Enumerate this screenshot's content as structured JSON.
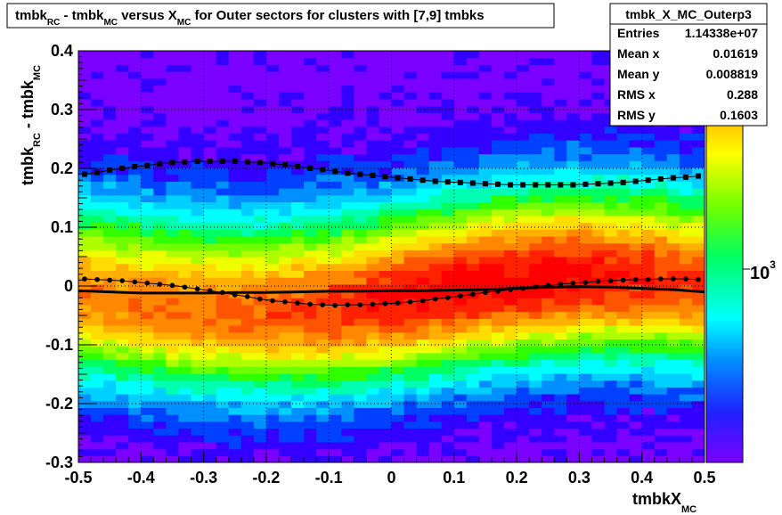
{
  "chart_data": {
    "type": "heatmap",
    "title": {
      "parts": [
        {
          "text": "tmbk",
          "sub": false
        },
        {
          "text": "RC",
          "sub": true
        },
        {
          "text": " - tmbk",
          "sub": false
        },
        {
          "text": "MC",
          "sub": true
        },
        {
          "text": " versus X",
          "sub": false
        },
        {
          "text": "MC",
          "sub": true
        },
        {
          "text": " for Outer sectors for clusters with [7,9] tmbks",
          "sub": false
        }
      ]
    },
    "xlabel": {
      "main": "tmbkX",
      "sub": "MC"
    },
    "ylabel": {
      "part1": "tmbk",
      "sub1": "RC",
      "part2": " - tmbk",
      "sub2": "MC"
    },
    "xlim": [
      -0.5,
      0.5
    ],
    "ylim": [
      -0.3,
      0.4
    ],
    "xticks": [
      "-0.5",
      "-0.4",
      "-0.3",
      "-0.2",
      "-0.1",
      "0",
      "0.1",
      "0.2",
      "0.3",
      "0.4",
      "0.5"
    ],
    "yticks": [
      "-0.3",
      "-0.2",
      "-0.1",
      "0",
      "0.1",
      "0.2",
      "0.3",
      "0.4"
    ],
    "grid": true,
    "colorbar": {
      "label": "10",
      "exponent": "3",
      "scale": "log"
    },
    "stats": {
      "name": "tmbk_X_MC_Outerp3",
      "rows": [
        {
          "label": "Entries",
          "value": "1.14338e+07"
        },
        {
          "label": "Mean x",
          "value": "0.01619"
        },
        {
          "label": "Mean y",
          "value": "0.008819"
        },
        {
          "label": "RMS x",
          "value": "0.288"
        },
        {
          "label": "RMS y",
          "value": "0.1603"
        }
      ]
    },
    "series": [
      {
        "marker": "square",
        "x": [
          -0.49,
          -0.47,
          -0.45,
          -0.43,
          -0.41,
          -0.39,
          -0.37,
          -0.35,
          -0.33,
          -0.31,
          -0.29,
          -0.27,
          -0.25,
          -0.23,
          -0.21,
          -0.19,
          -0.17,
          -0.15,
          -0.13,
          -0.11,
          -0.09,
          -0.07,
          -0.05,
          -0.03,
          -0.01,
          0.01,
          0.03,
          0.05,
          0.07,
          0.09,
          0.11,
          0.13,
          0.15,
          0.17,
          0.19,
          0.21,
          0.23,
          0.25,
          0.27,
          0.29,
          0.31,
          0.33,
          0.35,
          0.37,
          0.39,
          0.41,
          0.43,
          0.45,
          0.47,
          0.49
        ],
        "y": [
          0.19,
          0.193,
          0.197,
          0.2,
          0.203,
          0.205,
          0.208,
          0.21,
          0.211,
          0.212,
          0.212,
          0.212,
          0.212,
          0.211,
          0.21,
          0.208,
          0.206,
          0.203,
          0.2,
          0.198,
          0.195,
          0.192,
          0.19,
          0.188,
          0.186,
          0.184,
          0.182,
          0.18,
          0.178,
          0.177,
          0.176,
          0.175,
          0.174,
          0.173,
          0.172,
          0.172,
          0.172,
          0.172,
          0.172,
          0.172,
          0.173,
          0.174,
          0.175,
          0.176,
          0.178,
          0.18,
          0.182,
          0.184,
          0.185,
          0.187
        ]
      },
      {
        "marker": "circle",
        "x": [
          -0.49,
          -0.47,
          -0.45,
          -0.43,
          -0.41,
          -0.39,
          -0.37,
          -0.35,
          -0.33,
          -0.31,
          -0.29,
          -0.27,
          -0.25,
          -0.23,
          -0.21,
          -0.19,
          -0.17,
          -0.15,
          -0.13,
          -0.11,
          -0.09,
          -0.07,
          -0.05,
          -0.03,
          -0.01,
          0.01,
          0.03,
          0.05,
          0.07,
          0.09,
          0.11,
          0.13,
          0.15,
          0.17,
          0.19,
          0.21,
          0.23,
          0.25,
          0.27,
          0.29,
          0.31,
          0.33,
          0.35,
          0.37,
          0.39,
          0.41,
          0.43,
          0.45,
          0.47,
          0.49
        ],
        "y": [
          0.012,
          0.011,
          0.01,
          0.009,
          0.007,
          0.005,
          0.003,
          0.001,
          -0.002,
          -0.005,
          -0.008,
          -0.011,
          -0.015,
          -0.018,
          -0.022,
          -0.025,
          -0.027,
          -0.029,
          -0.031,
          -0.032,
          -0.033,
          -0.032,
          -0.032,
          -0.031,
          -0.03,
          -0.029,
          -0.027,
          -0.025,
          -0.022,
          -0.02,
          -0.017,
          -0.014,
          -0.011,
          -0.009,
          -0.006,
          -0.004,
          -0.001,
          0.001,
          0.003,
          0.005,
          0.006,
          0.008,
          0.009,
          0.01,
          0.011,
          0.011,
          0.012,
          0.012,
          0.012,
          0.011
        ]
      },
      {
        "marker": "line",
        "x": [
          -0.5,
          -0.45,
          -0.4,
          -0.35,
          -0.3,
          -0.25,
          -0.2,
          -0.15,
          -0.1,
          -0.05,
          0,
          0.05,
          0.1,
          0.15,
          0.2,
          0.25,
          0.3,
          0.35,
          0.4,
          0.45,
          0.5
        ],
        "y": [
          -0.008,
          -0.01,
          -0.012,
          -0.012,
          -0.012,
          -0.011,
          -0.011,
          -0.01,
          -0.009,
          -0.009,
          -0.008,
          -0.008,
          -0.007,
          -0.006,
          -0.004,
          -0.002,
          -0.001,
          -0.002,
          -0.004,
          -0.006,
          -0.01
        ]
      }
    ]
  }
}
